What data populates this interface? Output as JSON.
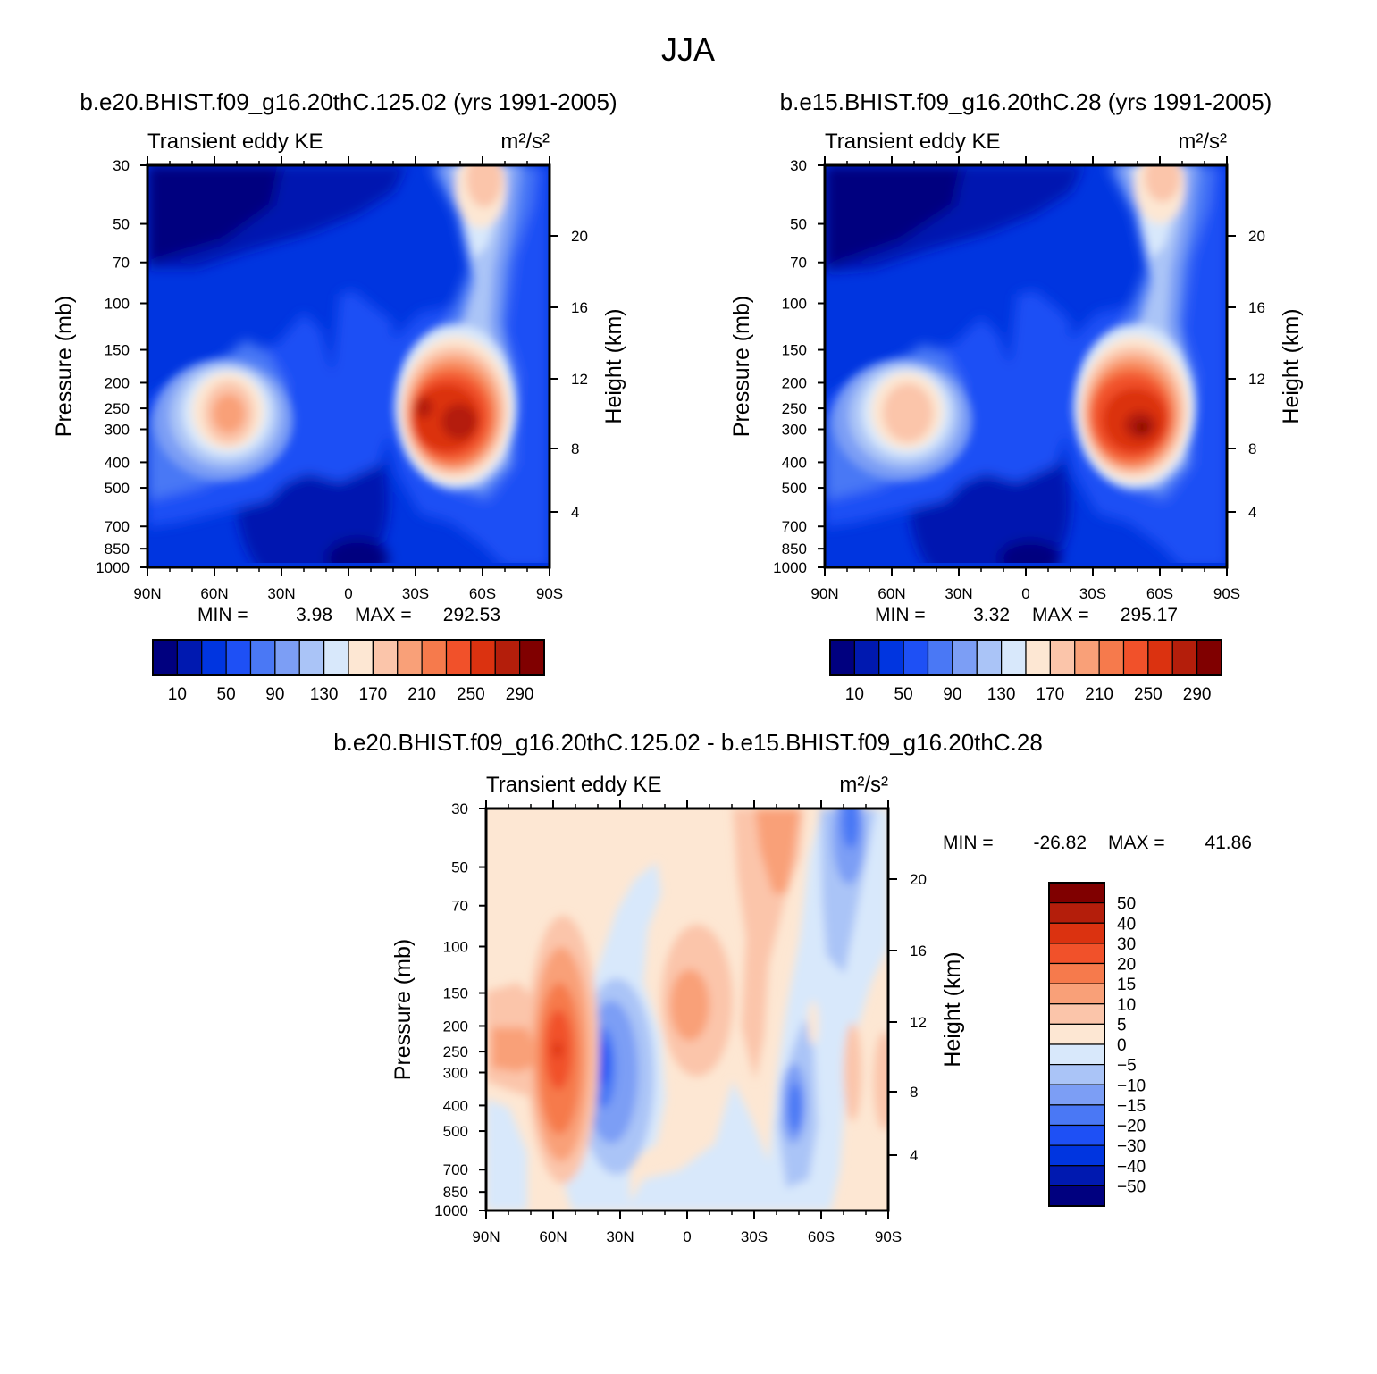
{
  "figure": {
    "title": "JJA"
  },
  "chart_data": [
    {
      "type": "heatmap",
      "title": "b.e20.BHIST.f09_g16.20thC.125.02 (yrs 1991-2005)",
      "subtitle_left": "Transient eddy KE",
      "subtitle_right": "m²/s²",
      "xlabel": "",
      "ylabel": "Pressure (mb)",
      "ylabel_right": "Height (km)",
      "x_ticks": [
        "90N",
        "60N",
        "30N",
        "0",
        "30S",
        "60S",
        "90S"
      ],
      "x_range": [
        90,
        -90
      ],
      "y_ticks": [
        "30",
        "50",
        "70",
        "100",
        "150",
        "200",
        "250",
        "300",
        "400",
        "500",
        "700",
        "850",
        "1000"
      ],
      "y_range": [
        1000,
        30
      ],
      "y_scale": "log",
      "right_ticks": [
        "20",
        "16",
        "12",
        "8",
        "4"
      ],
      "stats": {
        "min_label": "MIN =",
        "min": "3.98",
        "max_label": "MAX =",
        "max": "292.53"
      },
      "colorbar": {
        "orientation": "horizontal",
        "labels": [
          "10",
          "50",
          "90",
          "130",
          "170",
          "210",
          "250",
          "290"
        ],
        "colors": [
          "#00007f",
          "#0019b0",
          "#0035e0",
          "#1e50f5",
          "#4a78f5",
          "#7c9ef5",
          "#aac4f7",
          "#d8e8fb",
          "#fde7d3",
          "#fbc5aa",
          "#f9a078",
          "#f67a4c",
          "#f1512a",
          "#db3210",
          "#b41e0b",
          "#800000"
        ]
      }
    },
    {
      "type": "heatmap",
      "title": "b.e15.BHIST.f09_g16.20thC.28 (yrs 1991-2005)",
      "subtitle_left": "Transient eddy KE",
      "subtitle_right": "m²/s²",
      "xlabel": "",
      "ylabel": "Pressure (mb)",
      "ylabel_right": "Height (km)",
      "x_ticks": [
        "90N",
        "60N",
        "30N",
        "0",
        "30S",
        "60S",
        "90S"
      ],
      "x_range": [
        90,
        -90
      ],
      "y_ticks": [
        "30",
        "50",
        "70",
        "100",
        "150",
        "200",
        "250",
        "300",
        "400",
        "500",
        "700",
        "850",
        "1000"
      ],
      "y_range": [
        1000,
        30
      ],
      "y_scale": "log",
      "right_ticks": [
        "20",
        "16",
        "12",
        "8",
        "4"
      ],
      "stats": {
        "min_label": "MIN =",
        "min": "3.32",
        "max_label": "MAX =",
        "max": "295.17"
      },
      "colorbar": {
        "orientation": "horizontal",
        "labels": [
          "10",
          "50",
          "90",
          "130",
          "170",
          "210",
          "250",
          "290"
        ],
        "colors": [
          "#00007f",
          "#0019b0",
          "#0035e0",
          "#1e50f5",
          "#4a78f5",
          "#7c9ef5",
          "#aac4f7",
          "#d8e8fb",
          "#fde7d3",
          "#fbc5aa",
          "#f9a078",
          "#f67a4c",
          "#f1512a",
          "#db3210",
          "#b41e0b",
          "#800000"
        ]
      }
    },
    {
      "type": "heatmap",
      "title": "b.e20.BHIST.f09_g16.20thC.125.02 - b.e15.BHIST.f09_g16.20thC.28",
      "subtitle_left": "Transient eddy KE",
      "subtitle_right": "m²/s²",
      "xlabel": "",
      "ylabel": "Pressure (mb)",
      "ylabel_right": "Height (km)",
      "x_ticks": [
        "90N",
        "60N",
        "30N",
        "0",
        "30S",
        "60S",
        "90S"
      ],
      "x_range": [
        90,
        -90
      ],
      "y_ticks": [
        "30",
        "50",
        "70",
        "100",
        "150",
        "200",
        "250",
        "300",
        "400",
        "500",
        "700",
        "850",
        "1000"
      ],
      "y_range": [
        1000,
        30
      ],
      "y_scale": "log",
      "right_ticks": [
        "20",
        "16",
        "12",
        "8",
        "4"
      ],
      "stats": {
        "min_label": "MIN =",
        "min": "-26.82",
        "max_label": "MAX =",
        "max": "41.86"
      },
      "colorbar": {
        "orientation": "vertical",
        "labels": [
          "50",
          "40",
          "30",
          "20",
          "15",
          "10",
          "5",
          "0",
          "-5",
          "-10",
          "-15",
          "-20",
          "-30",
          "-40",
          "-50"
        ],
        "colors": [
          "#800000",
          "#b41e0b",
          "#db3210",
          "#f1512a",
          "#f67a4c",
          "#f9a078",
          "#fbc5aa",
          "#fde7d3",
          "#d8e8fb",
          "#aac4f7",
          "#7c9ef5",
          "#4a78f5",
          "#1e50f5",
          "#0035e0",
          "#0019b0",
          "#00007f"
        ]
      }
    }
  ]
}
